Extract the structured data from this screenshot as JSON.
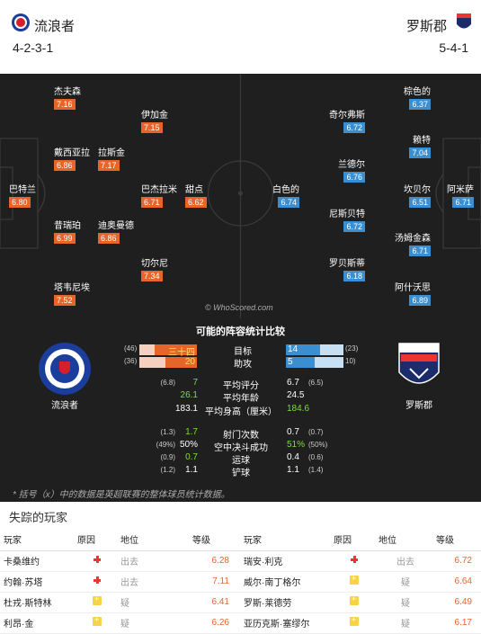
{
  "header": {
    "home_name": "流浪者",
    "away_name": "罗斯郡",
    "home_formation": "4-2-3-1",
    "away_formation": "5-4-1"
  },
  "colors": {
    "home": "#e8652a",
    "away": "#3b8fd1"
  },
  "home_players": [
    {
      "name": "杰夫森",
      "rating": "7.16"
    },
    {
      "name": "伊加金",
      "rating": "7.15"
    },
    {
      "name": "戴西亚拉",
      "rating": "6.86"
    },
    {
      "name": "拉斯金",
      "rating": "7.17"
    },
    {
      "name": "巴特兰",
      "rating": "6.80"
    },
    {
      "name": "巴杰拉米",
      "rating": "6.71"
    },
    {
      "name": "甜点",
      "rating": "6.62"
    },
    {
      "name": "昔瑞珀",
      "rating": "6.99"
    },
    {
      "name": "迪奥曼德",
      "rating": "6.86"
    },
    {
      "name": "切尔尼",
      "rating": "7.34"
    },
    {
      "name": "塔韦尼埃",
      "rating": "7.52"
    }
  ],
  "away_players": [
    {
      "name": "棕色的",
      "rating": "6.37"
    },
    {
      "name": "奇尔弗斯",
      "rating": "6.72"
    },
    {
      "name": "赖特",
      "rating": "7.04"
    },
    {
      "name": "兰德尔",
      "rating": "6.76"
    },
    {
      "name": "白色的",
      "rating": "6.74"
    },
    {
      "name": "坎贝尔",
      "rating": "6.51"
    },
    {
      "name": "阿米萨",
      "rating": "6.71"
    },
    {
      "name": "尼斯贝特",
      "rating": "6.72"
    },
    {
      "name": "汤姆金森",
      "rating": "6.71"
    },
    {
      "name": "罗贝斯蒂",
      "rating": "6.18"
    },
    {
      "name": "阿什沃思",
      "rating": "6.89"
    }
  ],
  "watermark": "© WhoScored.com",
  "compare": {
    "title": "可能的阵容统计比较",
    "home_label": "流浪者",
    "away_label": "罗斯郡",
    "crest_home_text": "RANGERS FOOTBALL CLUB",
    "crest_away_text": "ROSS COUNTY",
    "bars": [
      {
        "label": "目标",
        "home": "三十四",
        "home_league": "(46)",
        "away": "14",
        "away_league": "(23)",
        "home_frac": 0.74,
        "away_frac": 0.6
      },
      {
        "label": "助攻",
        "home": "20",
        "home_league": "(36)",
        "away": "5",
        "away_league": "10)",
        "home_frac": 0.55,
        "away_frac": 0.5
      }
    ],
    "stats": [
      {
        "label": "平均评分",
        "home": "7",
        "home_league": "(6.8)",
        "away": "6.7",
        "away_league": "(6.5)",
        "home_green": true,
        "away_green": false
      },
      {
        "label": "平均年龄",
        "home": "26.1",
        "home_league": "",
        "away": "24.5",
        "away_league": "",
        "home_green": true,
        "away_green": false
      },
      {
        "label": "平均身高（厘米）",
        "home": "183.1",
        "home_league": "",
        "away": "184.6",
        "away_league": "",
        "home_green": false,
        "away_green": true
      },
      {
        "label": "射门次数",
        "home": "1.7",
        "home_league": "(1.3)",
        "away": "0.7",
        "away_league": "(0.7)",
        "home_green": true,
        "away_green": false
      },
      {
        "label": "空中决斗成功",
        "home": "50%",
        "home_league": "(49%)",
        "away": "51%",
        "away_league": "(50%)",
        "home_green": false,
        "away_green": true
      },
      {
        "label": "运球",
        "home": "0.7",
        "home_league": "(0.9)",
        "away": "0.4",
        "away_league": "(0.6)",
        "home_green": true,
        "away_green": false
      },
      {
        "label": "铲球",
        "home": "1.1",
        "home_league": "(1.2)",
        "away": "1.1",
        "away_league": "(1.4)",
        "home_green": false,
        "away_green": false
      }
    ],
    "footnote": "* 括号（x）中的数据是英超联赛的整体球员统计数据。"
  },
  "missing": {
    "title": "失踪的玩家",
    "headers": {
      "player": "玩家",
      "reason": "原因",
      "status": "地位",
      "rating": "等级"
    },
    "home": [
      {
        "name": "卡桑维约",
        "icon": "red",
        "status": "出去",
        "rating": "6.28"
      },
      {
        "name": "约翰·苏塔",
        "icon": "red",
        "status": "出去",
        "rating": "7.11"
      },
      {
        "name": "杜戎·斯特林",
        "icon": "yellow",
        "status": "疑",
        "rating": "6.41"
      },
      {
        "name": "利昂·金",
        "icon": "yellow",
        "status": "疑",
        "rating": "6.26"
      }
    ],
    "away": [
      {
        "name": "瑞安·利克",
        "icon": "red",
        "status": "出去",
        "rating": "6.72"
      },
      {
        "name": "威尔·南丁格尔",
        "icon": "yellow",
        "status": "疑",
        "rating": "6.64"
      },
      {
        "name": "罗斯·莱德劳",
        "icon": "yellow",
        "status": "疑",
        "rating": "6.49"
      },
      {
        "name": "亚历克斯·塞缪尔",
        "icon": "yellow",
        "status": "疑",
        "rating": "6.17"
      }
    ]
  }
}
